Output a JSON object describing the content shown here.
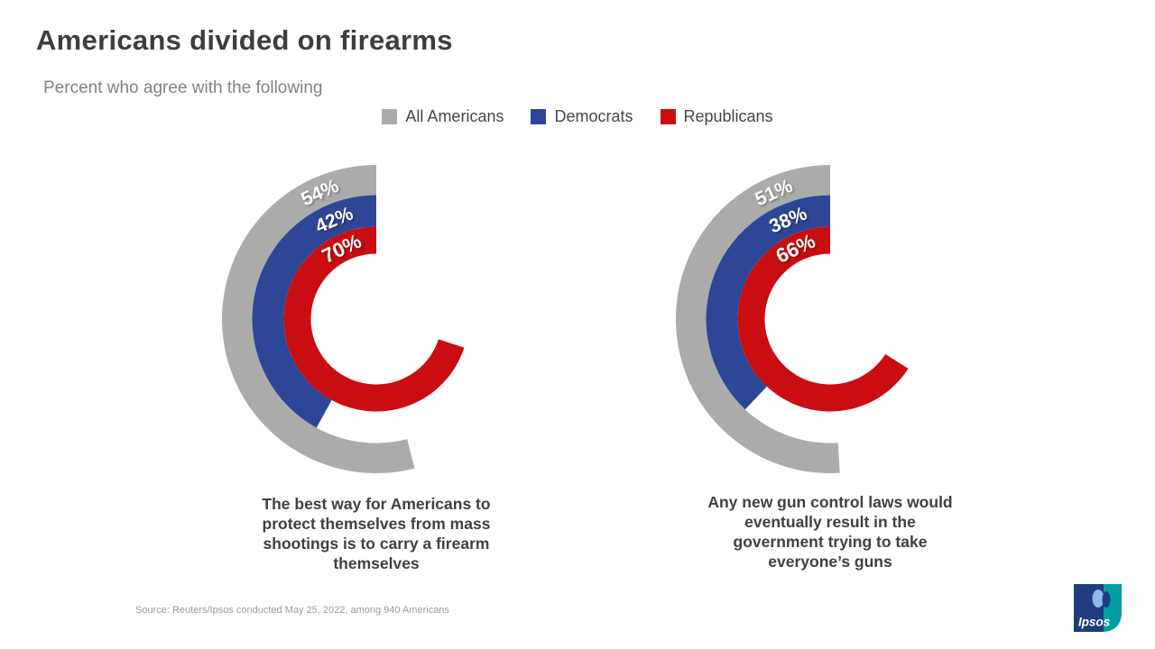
{
  "page": {
    "background": "#FFFFFF"
  },
  "header": {
    "title": "Americans divided on firearms",
    "subtitle": "Percent who agree with the following"
  },
  "legend": {
    "position": "top-center",
    "items": [
      {
        "label": "All Americans",
        "color": "#ABABAB"
      },
      {
        "label": "Democrats",
        "color": "#2E4696"
      },
      {
        "label": "Republicans",
        "color": "#C90D11"
      }
    ]
  },
  "footer": {
    "source": "Source: Reuters/Ipsos conducted May 25, 2022, among 940 Americans",
    "logo": {
      "text": "Ipsos",
      "navy": "#1E3C7E",
      "teal": "#009FA2",
      "face": "#8FB7E8"
    }
  },
  "chart_data": [
    {
      "type": "radial-bar",
      "unit": "%",
      "start_angle": "top",
      "direction": "counterclockwise",
      "scale_max": 100,
      "caption": "The best way for Americans to protect themselves from mass shootings is to carry a firearm themselves",
      "caption_lines": [
        "The best way for Americans to",
        "protect themselves from mass",
        "shootings is to carry a firearm",
        "themselves"
      ],
      "series": [
        {
          "name": "All Americans",
          "value": 54,
          "label": "54%",
          "color": "#ABABAB"
        },
        {
          "name": "Democrats",
          "value": 42,
          "label": "42%",
          "color": "#2E4696"
        },
        {
          "name": "Republicans",
          "value": 70,
          "label": "70%",
          "color": "#C90D11"
        }
      ]
    },
    {
      "type": "radial-bar",
      "unit": "%",
      "start_angle": "top",
      "direction": "counterclockwise",
      "scale_max": 100,
      "caption": "Any new gun control laws would eventually result in the government trying to take everyone’s guns",
      "caption_lines": [
        "Any new gun control laws would",
        "eventually result in the",
        "government trying to take",
        "everyone’s guns"
      ],
      "series": [
        {
          "name": "All Americans",
          "value": 51,
          "label": "51%",
          "color": "#ABABAB"
        },
        {
          "name": "Democrats",
          "value": 38,
          "label": "38%",
          "color": "#2E4696"
        },
        {
          "name": "Republicans",
          "value": 66,
          "label": "66%",
          "color": "#C90D11"
        }
      ]
    }
  ]
}
